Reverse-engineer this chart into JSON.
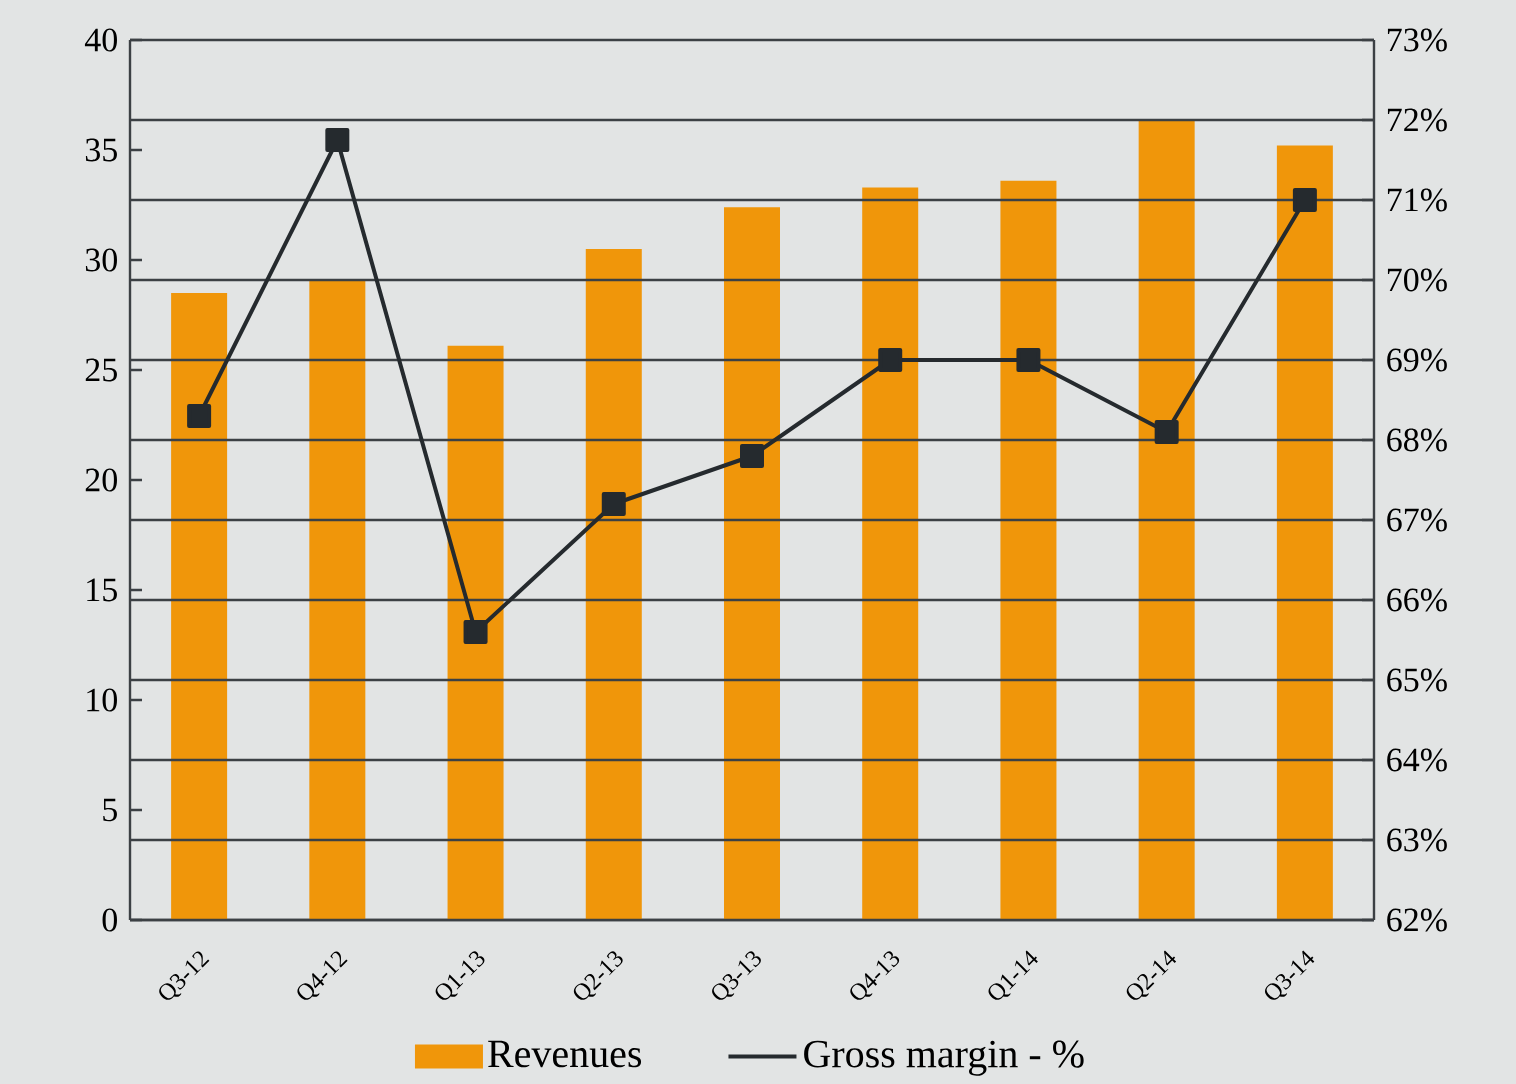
{
  "chart_data": {
    "type": "bar",
    "categories": [
      "Q3-12",
      "Q4-12",
      "Q1-13",
      "Q2-13",
      "Q3-13",
      "Q4-13",
      "Q1-14",
      "Q2-14",
      "Q3-14"
    ],
    "series": [
      {
        "name": "Revenues",
        "color": "#f0960a",
        "values": [
          28.5,
          29.1,
          26.1,
          30.5,
          32.4,
          33.3,
          33.6,
          36.4,
          35.2
        ]
      },
      {
        "name": "Gross margin - %",
        "type": "line",
        "axis": "y2",
        "color": "#252a2e",
        "values": [
          68.3,
          71.75,
          65.6,
          67.2,
          67.8,
          69.0,
          69.0,
          68.1,
          71.0
        ]
      }
    ],
    "ylim": [
      0,
      40
    ],
    "yticks": [
      0,
      5,
      10,
      15,
      20,
      25,
      30,
      35,
      40
    ],
    "y2lim": [
      62,
      73
    ],
    "y2ticks": [
      {
        "value": 62,
        "label": "62%"
      },
      {
        "value": 63,
        "label": "63%"
      },
      {
        "value": 64,
        "label": "64%"
      },
      {
        "value": 65,
        "label": "65%"
      },
      {
        "value": 66,
        "label": "66%"
      },
      {
        "value": 67,
        "label": "67%"
      },
      {
        "value": 68,
        "label": "68%"
      },
      {
        "value": 69,
        "label": "69%"
      },
      {
        "value": 70,
        "label": "70%"
      },
      {
        "value": 71,
        "label": "71%"
      },
      {
        "value": 72,
        "label": "72%"
      },
      {
        "value": 73,
        "label": "73%"
      }
    ],
    "grid": true,
    "legend": "bottom",
    "marker": "square",
    "line_style": "solid"
  }
}
